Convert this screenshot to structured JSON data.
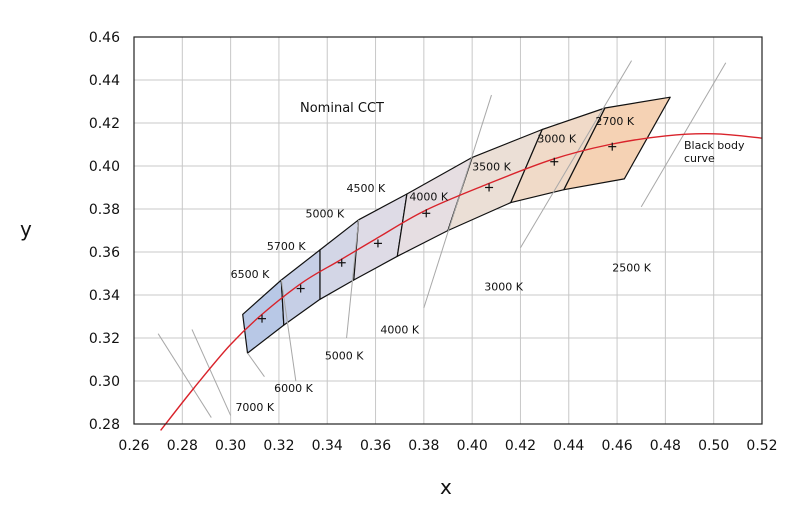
{
  "chart_data": {
    "type": "line",
    "title": "Nominal CCT",
    "xlabel": "x",
    "ylabel": "y",
    "xlim": [
      0.26,
      0.52
    ],
    "ylim": [
      0.28,
      0.46
    ],
    "x_ticks": [
      "0.26",
      "0.28",
      "0.30",
      "0.32",
      "0.34",
      "0.36",
      "0.38",
      "0.40",
      "0.42",
      "0.44",
      "0.46",
      "0.48",
      "0.50",
      "0.52"
    ],
    "y_ticks": [
      "0.28",
      "0.30",
      "0.32",
      "0.34",
      "0.36",
      "0.38",
      "0.40",
      "0.42",
      "0.44",
      "0.46"
    ],
    "grid": true,
    "curve_label": "Black body curve",
    "curve_label_lines": [
      "Black body",
      "curve"
    ],
    "curve_color": "#d9232b",
    "blackbody_curve": [
      [
        0.271,
        0.277
      ],
      [
        0.285,
        0.297
      ],
      [
        0.3,
        0.317
      ],
      [
        0.313,
        0.331
      ],
      [
        0.33,
        0.346
      ],
      [
        0.345,
        0.356
      ],
      [
        0.36,
        0.366
      ],
      [
        0.38,
        0.379
      ],
      [
        0.405,
        0.391
      ],
      [
        0.433,
        0.403
      ],
      [
        0.457,
        0.41
      ],
      [
        0.48,
        0.414
      ],
      [
        0.5,
        0.415
      ],
      [
        0.52,
        0.413
      ]
    ],
    "nominal_points": [
      {
        "label": "6500 K",
        "x": 0.313,
        "y": 0.329
      },
      {
        "label": "5700 K",
        "x": 0.329,
        "y": 0.343
      },
      {
        "label": "5000 K",
        "x": 0.346,
        "y": 0.355
      },
      {
        "label": "4500 K",
        "x": 0.361,
        "y": 0.364
      },
      {
        "label": "4000 K",
        "x": 0.381,
        "y": 0.378
      },
      {
        "label": "3500 K",
        "x": 0.407,
        "y": 0.39
      },
      {
        "label": "3000 K",
        "x": 0.434,
        "y": 0.402
      },
      {
        "label": "2700 K",
        "x": 0.458,
        "y": 0.409
      }
    ],
    "quadrangles": [
      {
        "name": "6500 K",
        "color": "#b8c8e6",
        "points": [
          [
            0.305,
            0.331
          ],
          [
            0.321,
            0.347
          ],
          [
            0.322,
            0.326
          ],
          [
            0.307,
            0.313
          ]
        ]
      },
      {
        "name": "5700 K",
        "color": "#c6cfe6",
        "points": [
          [
            0.321,
            0.347
          ],
          [
            0.337,
            0.361
          ],
          [
            0.337,
            0.338
          ],
          [
            0.322,
            0.326
          ]
        ]
      },
      {
        "name": "5000 K",
        "color": "#d3d6e6",
        "points": [
          [
            0.337,
            0.361
          ],
          [
            0.353,
            0.375
          ],
          [
            0.351,
            0.347
          ],
          [
            0.337,
            0.338
          ]
        ]
      },
      {
        "name": "4500 K",
        "color": "#dedbe6",
        "points": [
          [
            0.353,
            0.375
          ],
          [
            0.373,
            0.387
          ],
          [
            0.369,
            0.358
          ],
          [
            0.351,
            0.347
          ]
        ]
      },
      {
        "name": "4000 K",
        "color": "#e6dee2",
        "points": [
          [
            0.373,
            0.387
          ],
          [
            0.4,
            0.404
          ],
          [
            0.39,
            0.37
          ],
          [
            0.369,
            0.358
          ]
        ]
      },
      {
        "name": "3500 K",
        "color": "#ebdfd6",
        "points": [
          [
            0.4,
            0.404
          ],
          [
            0.429,
            0.417
          ],
          [
            0.416,
            0.383
          ],
          [
            0.39,
            0.37
          ]
        ]
      },
      {
        "name": "3000 K",
        "color": "#f0dac8",
        "points": [
          [
            0.429,
            0.417
          ],
          [
            0.455,
            0.427
          ],
          [
            0.438,
            0.389
          ],
          [
            0.416,
            0.383
          ]
        ]
      },
      {
        "name": "2700 K",
        "color": "#f5d2b4",
        "points": [
          [
            0.455,
            0.427
          ],
          [
            0.482,
            0.432
          ],
          [
            0.463,
            0.394
          ],
          [
            0.438,
            0.389
          ]
        ]
      }
    ],
    "isotemperature_lines": [
      {
        "label": "7000 K",
        "from": [
          0.27,
          0.322
        ],
        "to": [
          0.292,
          0.283
        ]
      },
      {
        "label": "6000 K",
        "from": [
          0.321,
          0.347
        ],
        "to": [
          0.327,
          0.3
        ]
      },
      {
        "label": "5000 K",
        "from": [
          0.353,
          0.375
        ],
        "to": [
          0.348,
          0.32
        ]
      },
      {
        "label": "4000 K",
        "from": [
          0.408,
          0.433
        ],
        "to": [
          0.38,
          0.334
        ]
      },
      {
        "label": "3000 K",
        "from": [
          0.466,
          0.449
        ],
        "to": [
          0.42,
          0.362
        ]
      },
      {
        "label": "2500 K",
        "from": [
          0.505,
          0.448
        ],
        "to": [
          0.47,
          0.381
        ]
      }
    ],
    "extra_gray_lines": [
      {
        "from": [
          0.284,
          0.324
        ],
        "to": [
          0.3,
          0.284
        ]
      },
      {
        "from": [
          0.307,
          0.313
        ],
        "to": [
          0.314,
          0.302
        ]
      }
    ],
    "annotations": [
      {
        "text": "6500 K",
        "x": 0.3,
        "y": 0.348
      },
      {
        "text": "5700 K",
        "x": 0.315,
        "y": 0.361
      },
      {
        "text": "5000 K",
        "x": 0.331,
        "y": 0.376
      },
      {
        "text": "4500 K",
        "x": 0.348,
        "y": 0.388
      },
      {
        "text": "4000 K",
        "x": 0.374,
        "y": 0.384
      },
      {
        "text": "3500 K",
        "x": 0.4,
        "y": 0.398
      },
      {
        "text": "3000 K",
        "x": 0.427,
        "y": 0.411
      },
      {
        "text": "2700 K",
        "x": 0.451,
        "y": 0.419
      },
      {
        "text": "7000 K",
        "x": 0.302,
        "y": 0.286
      },
      {
        "text": "6000 K",
        "x": 0.318,
        "y": 0.295
      },
      {
        "text": "5000 K",
        "x": 0.339,
        "y": 0.31
      },
      {
        "text": "4000 K",
        "x": 0.362,
        "y": 0.322
      },
      {
        "text": "3000 K",
        "x": 0.405,
        "y": 0.342
      },
      {
        "text": "2500 K",
        "x": 0.458,
        "y": 0.351
      }
    ]
  }
}
